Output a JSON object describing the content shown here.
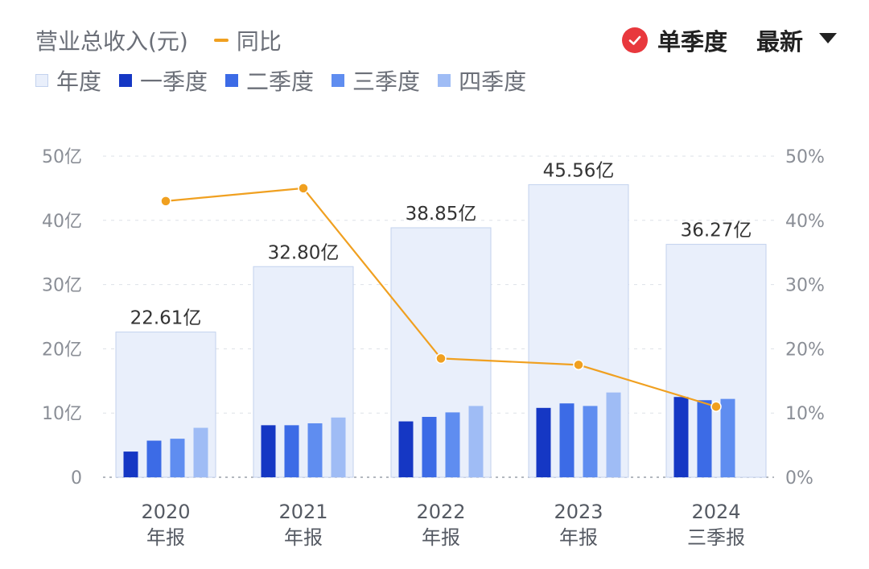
{
  "header": {
    "metric_title": "营业总收入(元)",
    "yoy_label": "同比",
    "mode_label": "单季度",
    "sort_label": "最新"
  },
  "colors": {
    "annual_fill": "#e9effb",
    "annual_stroke": "#c3d2ee",
    "q1": "#1537c4",
    "q2": "#3c6be6",
    "q3": "#5f8df0",
    "q4": "#9fbcf5",
    "yoy": "#f0a020",
    "check": "#e8383d"
  },
  "chart_data": {
    "type": "bar",
    "categories": [
      [
        "2020",
        "年报"
      ],
      [
        "2021",
        "年报"
      ],
      [
        "2022",
        "年报"
      ],
      [
        "2023",
        "年报"
      ],
      [
        "2024",
        "三季报"
      ]
    ],
    "legend": [
      "年度",
      "一季度",
      "二季度",
      "三季度",
      "四季度"
    ],
    "annual_values": [
      22.61,
      32.8,
      38.85,
      45.56,
      36.27
    ],
    "annual_labels": [
      "22.61亿",
      "32.80亿",
      "38.85亿",
      "45.56亿",
      "36.27亿"
    ],
    "quarters": [
      [
        4.0,
        5.7,
        6.0,
        7.7
      ],
      [
        8.1,
        8.1,
        8.4,
        9.3
      ],
      [
        8.7,
        9.4,
        10.1,
        11.1
      ],
      [
        10.8,
        11.5,
        11.1,
        13.2
      ],
      [
        12.5,
        12.0,
        12.2,
        null
      ]
    ],
    "yoy_percent": [
      43.0,
      45.0,
      18.5,
      17.5,
      11.0
    ],
    "y_left": {
      "min": 0,
      "max": 50,
      "ticks": [
        "0",
        "10亿",
        "20亿",
        "30亿",
        "40亿",
        "50亿"
      ]
    },
    "y_right": {
      "min": 0,
      "max": 50,
      "ticks": [
        "0%",
        "10%",
        "20%",
        "30%",
        "40%",
        "50%"
      ]
    },
    "grid": true
  }
}
